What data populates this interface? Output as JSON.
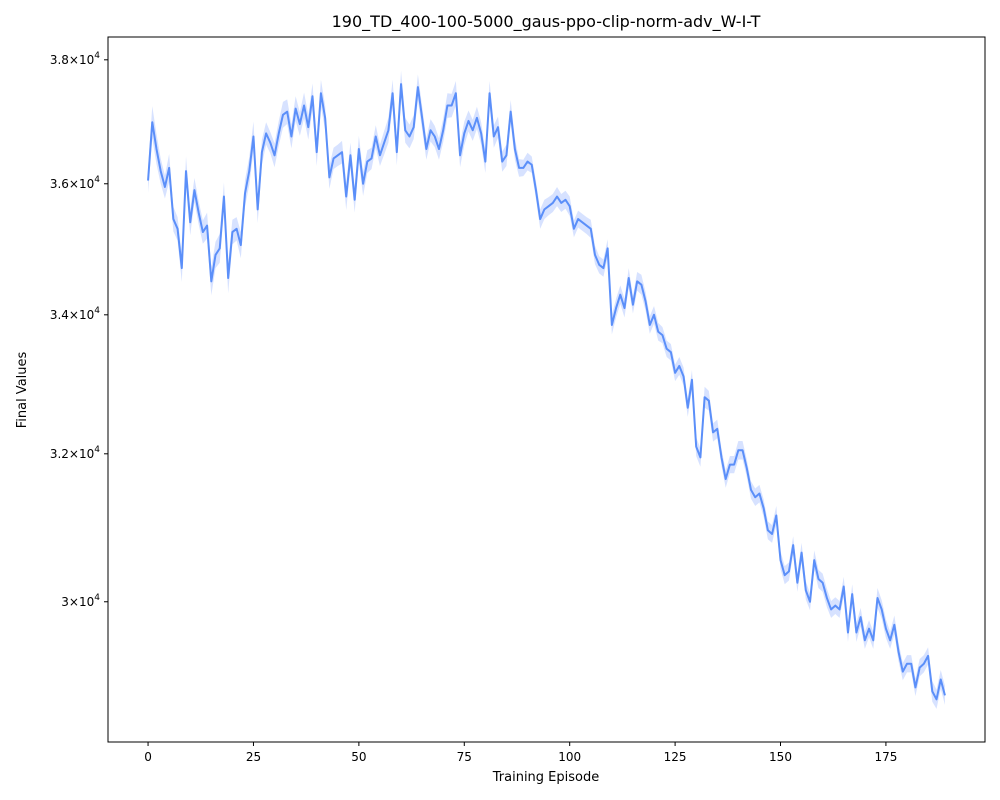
{
  "chart_data": {
    "type": "line",
    "title": "190_TD_400-100-5000_gaus-ppo-clip-norm-adv_W-I-T",
    "xlabel": "Training Episode",
    "ylabel": "Final Values",
    "xlim": [
      -9.5,
      198.5
    ],
    "ylim": [
      28220,
      38380
    ],
    "y_scale": "log",
    "x_ticks": [
      0,
      25,
      50,
      75,
      100,
      125,
      150,
      175
    ],
    "y_ticks": [
      {
        "value": 30000,
        "mant": "3",
        "exp": "4"
      },
      {
        "value": 32000,
        "mant": "3.2",
        "exp": "4"
      },
      {
        "value": 34000,
        "mant": "3.4",
        "exp": "4"
      },
      {
        "value": 36000,
        "mant": "3.6",
        "exp": "4"
      },
      {
        "value": 38000,
        "mant": "3.8",
        "exp": "4"
      }
    ],
    "tick_label_times": "×10",
    "grid": false,
    "line_color": "#5b8ff9",
    "band_color": "#c9d8ff",
    "series": [
      {
        "x": [
          0,
          1,
          2,
          3,
          4,
          5,
          6,
          7,
          8,
          9,
          10,
          11,
          12,
          13,
          14,
          15,
          16,
          17,
          18,
          19,
          20,
          21,
          22,
          23,
          24,
          25,
          26,
          27,
          28,
          29,
          30,
          31,
          32,
          33,
          34,
          35,
          36,
          37,
          38,
          39,
          40,
          41,
          42,
          43,
          44,
          45,
          46,
          47,
          48,
          49,
          50,
          51,
          52,
          53,
          54,
          55,
          56,
          57,
          58,
          59,
          60,
          61,
          62,
          63,
          64,
          65,
          66,
          67,
          68,
          69,
          70,
          71,
          72,
          73,
          74,
          75,
          76,
          77,
          78,
          79,
          80,
          81,
          82,
          83,
          84,
          85,
          86,
          87,
          88,
          89,
          90,
          91,
          92,
          93,
          94,
          95,
          96,
          97,
          98,
          99,
          100,
          101,
          102,
          103,
          104,
          105,
          106,
          107,
          108,
          109,
          110,
          111,
          112,
          113,
          114,
          115,
          116,
          117,
          118,
          119,
          120,
          121,
          122,
          123,
          124,
          125,
          126,
          127,
          128,
          129,
          130,
          131,
          132,
          133,
          134,
          135,
          136,
          137,
          138,
          139,
          140,
          141,
          142,
          143,
          144,
          145,
          146,
          147,
          148,
          149,
          150,
          151,
          152,
          153,
          154,
          155,
          156,
          157,
          158,
          159,
          160,
          161,
          162,
          163,
          164,
          165,
          166,
          167,
          168,
          169,
          170,
          171,
          172,
          173,
          174,
          175,
          176,
          177,
          178,
          179,
          180,
          181,
          182,
          183,
          184,
          185,
          186,
          187,
          188,
          189
        ],
        "y": [
          36050,
          36980,
          36550,
          36200,
          35950,
          36250,
          35450,
          35300,
          34700,
          36200,
          35400,
          35900,
          35550,
          35250,
          35350,
          34500,
          34900,
          35000,
          35800,
          34550,
          35250,
          35300,
          35050,
          35850,
          36200,
          36750,
          35600,
          36500,
          36800,
          36650,
          36450,
          36800,
          37100,
          37150,
          36750,
          37200,
          36950,
          37250,
          36900,
          37400,
          36500,
          37450,
          37050,
          36100,
          36400,
          36450,
          36500,
          35800,
          36450,
          35750,
          36550,
          36000,
          36350,
          36400,
          36750,
          36450,
          36650,
          36850,
          37450,
          36500,
          37600,
          36850,
          36750,
          36900,
          37550,
          37050,
          36550,
          36850,
          36750,
          36550,
          36850,
          37250,
          37250,
          37450,
          36450,
          36800,
          37000,
          36850,
          37050,
          36800,
          36350,
          37450,
          36750,
          36900,
          36350,
          36450,
          37150,
          36550,
          36250,
          36250,
          36350,
          36300,
          35900,
          35450,
          35600,
          35650,
          35700,
          35800,
          35700,
          35750,
          35650,
          35300,
          35450,
          35400,
          35350,
          35300,
          34900,
          34750,
          34700,
          35000,
          33850,
          34100,
          34300,
          34100,
          34550,
          34150,
          34500,
          34450,
          34200,
          33850,
          34000,
          33750,
          33700,
          33500,
          33450,
          33150,
          33250,
          33100,
          32650,
          33050,
          32100,
          31950,
          32800,
          32750,
          32300,
          32350,
          31950,
          31650,
          31850,
          31850,
          32050,
          32050,
          31800,
          31500,
          31400,
          31450,
          31250,
          30950,
          30900,
          31150,
          30550,
          30350,
          30400,
          30750,
          30250,
          30650,
          30150,
          30000,
          30550,
          30300,
          30250,
          30050,
          29900,
          29950,
          29900,
          30200,
          29600,
          30100,
          29600,
          29800,
          29500,
          29650,
          29500,
          30050,
          29900,
          29650,
          29500,
          29700,
          29350,
          29100,
          29200,
          29200,
          28900,
          29150,
          29200,
          29300,
          28850,
          28750,
          29000,
          28800
        ],
        "band": [
          190,
          260,
          240,
          200,
          180,
          220,
          190,
          180,
          210,
          230,
          200,
          190,
          180,
          180,
          200,
          210,
          200,
          220,
          220,
          230,
          190,
          180,
          200,
          210,
          220,
          240,
          210,
          200,
          180,
          170,
          190,
          200,
          210,
          200,
          190,
          200,
          190,
          210,
          200,
          210,
          220,
          220,
          200,
          180,
          170,
          170,
          180,
          210,
          200,
          200,
          210,
          190,
          180,
          170,
          180,
          170,
          190,
          200,
          220,
          210,
          220,
          200,
          190,
          190,
          210,
          190,
          170,
          180,
          170,
          170,
          190,
          200,
          190,
          200,
          190,
          190,
          170,
          170,
          180,
          180,
          180,
          200,
          180,
          170,
          160,
          170,
          190,
          170,
          140,
          130,
          140,
          130,
          140,
          150,
          150,
          140,
          140,
          150,
          140,
          140,
          150,
          130,
          130,
          130,
          130,
          140,
          140,
          130,
          130,
          140,
          140,
          140,
          140,
          140,
          150,
          130,
          140,
          150,
          140,
          130,
          130,
          130,
          120,
          120,
          120,
          120,
          130,
          130,
          130,
          140,
          130,
          130,
          150,
          140,
          130,
          130,
          120,
          120,
          120,
          120,
          130,
          130,
          120,
          120,
          120,
          120,
          120,
          120,
          120,
          130,
          120,
          120,
          120,
          120,
          120,
          130,
          120,
          110,
          130,
          120,
          120,
          120,
          110,
          110,
          110,
          130,
          120,
          130,
          120,
          120,
          110,
          110,
          110,
          130,
          120,
          120,
          110,
          120,
          120,
          110,
          110,
          110,
          110,
          110,
          110,
          110,
          130,
          120,
          120,
          120
        ]
      }
    ]
  }
}
